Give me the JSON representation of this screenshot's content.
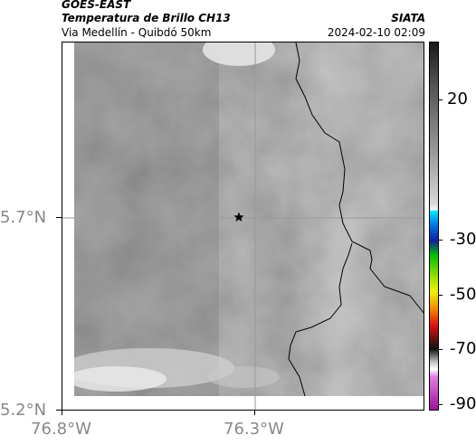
{
  "header": {
    "satellite": "GOES-EAST",
    "product": "Temperatura de Brillo CH13",
    "subtitle": "Via Medellín - Quibdó 50km",
    "org": "SIATA",
    "datetime": "2024-02-10 02:09"
  },
  "axes": {
    "y_ticks": [
      "5.7°N",
      "5.2°N"
    ],
    "x_ticks": [
      "76.8°W",
      "76.3°W"
    ]
  },
  "colorbar": {
    "labels": [
      "20",
      "-30",
      "-50",
      "-70",
      "-90"
    ],
    "colors": {
      "gray_light": "#d6d6d6",
      "gray_dark": "#2a2a2a",
      "cyan": "#00e5ff",
      "blue": "#1020c0",
      "green": "#00c000",
      "yellow": "#e8f000",
      "red": "#e01010",
      "black": "#000000",
      "magenta": "#c020c0"
    }
  },
  "map": {
    "marker": "star-icon",
    "background_color": "#8a8a8a"
  }
}
